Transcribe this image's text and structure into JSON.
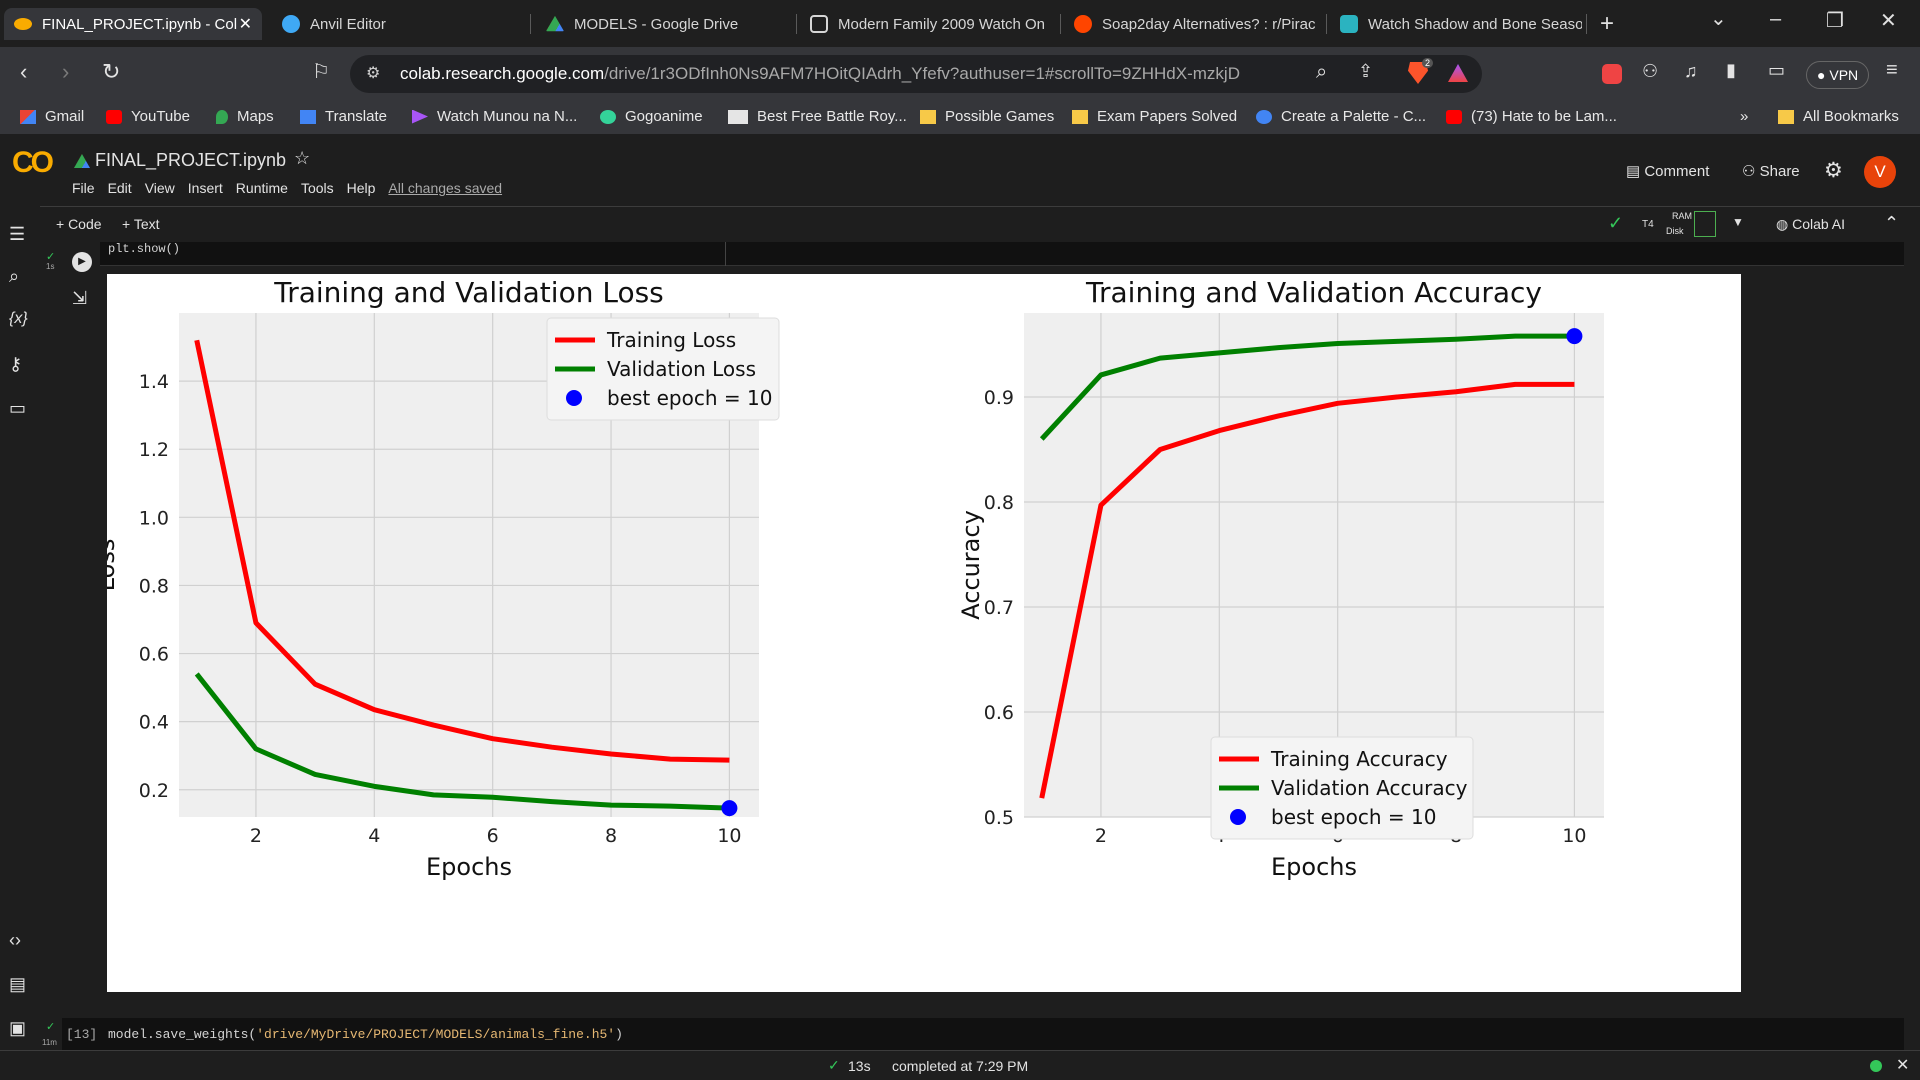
{
  "browser": {
    "tabs": [
      {
        "title": "FINAL_PROJECT.ipynb - Col",
        "active": true
      },
      {
        "title": "Anvil Editor"
      },
      {
        "title": "MODELS - Google Drive"
      },
      {
        "title": "Modern Family 2009 Watch On"
      },
      {
        "title": "Soap2day Alternatives? : r/Pirac"
      },
      {
        "title": "Watch Shadow and Bone Seaso"
      }
    ],
    "url_host": "colab.research.google.com",
    "url_path": "/drive/1r3ODfInh0Ns9AFM7HOitQIAdrh_Yfefv?authuser=1#scrollTo=9ZHHdX-mzkjD",
    "shield_count": "2",
    "vpn_label": "VPN",
    "bookmarks": [
      "Gmail",
      "YouTube",
      "Maps",
      "Translate",
      "Watch Munou na N...",
      "Gogoanime",
      "Best Free Battle Roy...",
      "Possible Games",
      "Exam Papers Solved",
      "Create a Palette - C...",
      "(73) Hate to be Lam..."
    ],
    "bookmarks_more": "»",
    "all_bookmarks": "All Bookmarks"
  },
  "colab": {
    "logo": "CO",
    "notebook_name": "FINAL_PROJECT.ipynb",
    "menu": [
      "File",
      "Edit",
      "View",
      "Insert",
      "Runtime",
      "Tools",
      "Help"
    ],
    "save_status": "All changes saved",
    "comment_label": "Comment",
    "share_label": "Share",
    "avatar_letter": "V",
    "add_code": "+ Code",
    "add_text": "+ Text",
    "runtime_type": "T4",
    "ram_label": "RAM",
    "disk_label": "Disk",
    "colab_ai": "Colab AI",
    "cell1_time": "1s",
    "cell1_code": "plt.show()",
    "cell2_number": "[13]",
    "cell2_time": "11m",
    "cell2_code_fn": "model.save_weights(",
    "cell2_code_arg": "'drive/MyDrive/PROJECT/MODELS/animals_fine.h5'",
    "cell2_code_end": ")",
    "status_time": "13s",
    "status_completed": "completed at 7:29 PM"
  },
  "chart_data": [
    {
      "type": "line",
      "title": "Training and Validation Loss",
      "xlabel": "Epochs",
      "ylabel": "Loss",
      "x": [
        1,
        2,
        3,
        4,
        5,
        6,
        7,
        8,
        9,
        10
      ],
      "xlim": [
        0.7,
        10.5
      ],
      "ylim": [
        0.12,
        1.6
      ],
      "xticks": [
        2,
        4,
        6,
        8,
        10
      ],
      "yticks": [
        0.2,
        0.4,
        0.6,
        0.8,
        1.0,
        1.2,
        1.4
      ],
      "series": [
        {
          "name": "Training Loss",
          "color": "#ff0000",
          "values": [
            1.52,
            0.69,
            0.51,
            0.435,
            0.39,
            0.35,
            0.325,
            0.305,
            0.29,
            0.287
          ]
        },
        {
          "name": "Validation Loss",
          "color": "#008000",
          "values": [
            0.54,
            0.32,
            0.245,
            0.21,
            0.185,
            0.178,
            0.165,
            0.155,
            0.152,
            0.146
          ]
        }
      ],
      "best": {
        "label": "best epoch = 10",
        "x": 10,
        "y": 0.146,
        "color": "#0000ff"
      },
      "legend": "top-right",
      "grid": true
    },
    {
      "type": "line",
      "title": "Training and Validation Accuracy",
      "xlabel": "Epochs",
      "ylabel": "Accuracy",
      "x": [
        1,
        2,
        3,
        4,
        5,
        6,
        7,
        8,
        9,
        10
      ],
      "xlim": [
        0.7,
        10.5
      ],
      "ylim": [
        0.5,
        0.98
      ],
      "xticks": [
        2,
        4,
        6,
        8,
        10
      ],
      "yticks": [
        0.5,
        0.6,
        0.7,
        0.8,
        0.9
      ],
      "series": [
        {
          "name": "Training Accuracy",
          "color": "#ff0000",
          "values": [
            0.518,
            0.797,
            0.85,
            0.868,
            0.882,
            0.894,
            0.9,
            0.905,
            0.912,
            0.912
          ]
        },
        {
          "name": "Validation Accuracy",
          "color": "#008000",
          "values": [
            0.86,
            0.921,
            0.937,
            0.942,
            0.947,
            0.951,
            0.953,
            0.955,
            0.958,
            0.958
          ]
        }
      ],
      "best": {
        "label": "best epoch = 10",
        "x": 10,
        "y": 0.958,
        "color": "#0000ff"
      },
      "legend": "lower-right",
      "grid": true
    }
  ]
}
